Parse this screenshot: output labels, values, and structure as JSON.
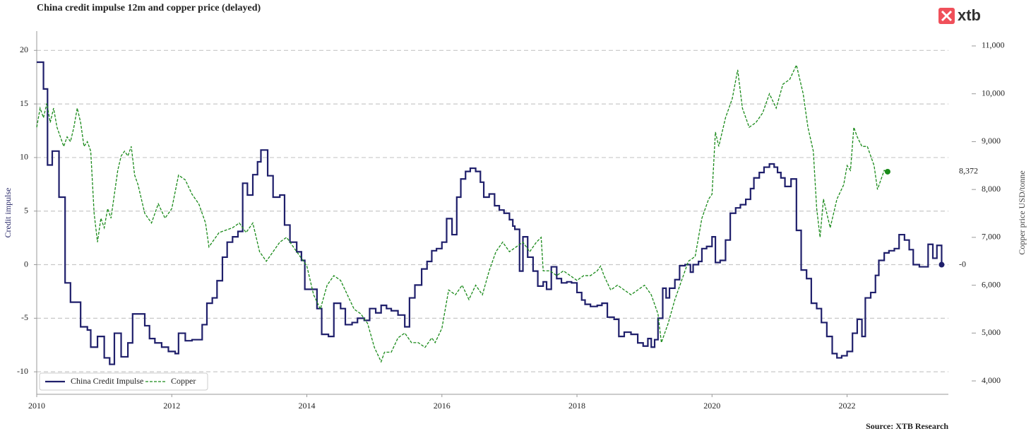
{
  "chart_data": {
    "type": "line",
    "title": "China credit impulse 12m and copper price (delayed)",
    "source": "Source: XTB Research",
    "logo": "xtb",
    "ylabel": "Credit impulse",
    "y2label": "Copper price USD/tonne",
    "xlim": [
      2010,
      2023.5
    ],
    "xticks": [
      2010,
      2012,
      2014,
      2016,
      2018,
      2020,
      2022
    ],
    "ylim": [
      -12.1,
      21.8
    ],
    "yticks": [
      -10,
      -5,
      0,
      5,
      10,
      15,
      20
    ],
    "y2lim": [
      3720,
      11310
    ],
    "y2ticks": [
      {
        "value": 4000,
        "label": "4,000"
      },
      {
        "value": 5000,
        "label": "5,000"
      },
      {
        "value": 6000,
        "label": "6,000"
      },
      {
        "value": 7000,
        "label": "7,000"
      },
      {
        "value": 8000,
        "label": "8,000"
      },
      {
        "value": 9000,
        "label": "9,000"
      },
      {
        "value": 10000,
        "label": "10,000"
      },
      {
        "value": 11000,
        "label": "11,000"
      }
    ],
    "grid": true,
    "legend": "lower left",
    "annotations": [
      {
        "text": "8,372",
        "value": 8372,
        "axis": "y2"
      },
      {
        "text": "-0",
        "value": 0,
        "axis": "y"
      }
    ],
    "series": [
      {
        "name": "China Credit Impulse",
        "color": "#1f1f6b",
        "axis": "y",
        "step": true,
        "linestyle": "solid",
        "x": [
          2010.0,
          2010.1,
          2010.16,
          2010.23,
          2010.33,
          2010.42,
          2010.5,
          2010.65,
          2010.75,
          2010.8,
          2010.9,
          2011.0,
          2011.08,
          2011.15,
          2011.25,
          2011.35,
          2011.42,
          2011.6,
          2011.67,
          2011.75,
          2011.85,
          2011.95,
          2012.05,
          2012.1,
          2012.2,
          2012.3,
          2012.45,
          2012.52,
          2012.6,
          2012.67,
          2012.75,
          2012.82,
          2012.9,
          2012.98,
          2013.05,
          2013.12,
          2013.2,
          2013.27,
          2013.32,
          2013.42,
          2013.5,
          2013.6,
          2013.67,
          2013.75,
          2013.85,
          2013.92,
          2013.97,
          2014.15,
          2014.22,
          2014.32,
          2014.4,
          2014.5,
          2014.57,
          2014.67,
          2014.75,
          2014.85,
          2014.93,
          2015.02,
          2015.1,
          2015.18,
          2015.25,
          2015.35,
          2015.45,
          2015.52,
          2015.6,
          2015.7,
          2015.78,
          2015.85,
          2015.92,
          2016.0,
          2016.07,
          2016.15,
          2016.22,
          2016.28,
          2016.35,
          2016.42,
          2016.5,
          2016.57,
          2016.62,
          2016.7,
          2016.78,
          2016.85,
          2016.92,
          2017.0,
          2017.05,
          2017.08,
          2017.15,
          2017.2,
          2017.27,
          2017.35,
          2017.42,
          2017.5,
          2017.55,
          2017.62,
          2017.7,
          2017.77,
          2017.85,
          2017.92,
          2018.0,
          2018.07,
          2018.12,
          2018.2,
          2018.3,
          2018.37,
          2018.45,
          2018.55,
          2018.62,
          2018.7,
          2018.8,
          2018.9,
          2018.98,
          2019.05,
          2019.1,
          2019.15,
          2019.2,
          2019.27,
          2019.32,
          2019.37,
          2019.45,
          2019.52,
          2019.6,
          2019.68,
          2019.72,
          2019.8,
          2019.85,
          2019.92,
          2020.0,
          2020.05,
          2020.12,
          2020.2,
          2020.27,
          2020.35,
          2020.42,
          2020.5,
          2020.57,
          2020.62,
          2020.7,
          2020.77,
          2020.85,
          2020.92,
          2020.97,
          2021.02,
          2021.08,
          2021.17,
          2021.25,
          2021.32,
          2021.4,
          2021.47,
          2021.55,
          2021.62,
          2021.7,
          2021.78,
          2021.85,
          2021.92,
          2022.0,
          2022.08,
          2022.15,
          2022.22,
          2022.27,
          2022.35,
          2022.42,
          2022.47,
          2022.55,
          2022.62,
          2022.7,
          2022.77,
          2022.85,
          2022.92,
          2022.98,
          2023.07,
          2023.2,
          2023.27,
          2023.33,
          2023.4
        ],
        "values": [
          18.9,
          16.4,
          9.3,
          10.6,
          6.3,
          -1.7,
          -3.5,
          -5.8,
          -6.1,
          -7.7,
          -6.7,
          -8.7,
          -9.3,
          -6.4,
          -8.6,
          -7.3,
          -4.6,
          -5.7,
          -6.9,
          -7.3,
          -7.7,
          -8.1,
          -8.3,
          -6.4,
          -7.1,
          -7.0,
          -5.6,
          -3.6,
          -3.1,
          -1.5,
          0.7,
          2.1,
          2.6,
          3.1,
          7.6,
          6.5,
          8.4,
          9.6,
          10.7,
          8.3,
          6.3,
          6.5,
          3.7,
          2.1,
          1.2,
          0.4,
          -2.3,
          -4.1,
          -6.5,
          -6.7,
          -3.6,
          -4.1,
          -5.6,
          -5.4,
          -5.0,
          -5.2,
          -4.1,
          -4.5,
          -3.8,
          -4.1,
          -4.3,
          -4.7,
          -5.8,
          -3.1,
          -1.9,
          -0.4,
          0.3,
          1.3,
          1.5,
          2.1,
          4.3,
          2.8,
          6.3,
          8.0,
          8.7,
          9.0,
          8.7,
          7.7,
          6.3,
          6.6,
          5.5,
          5.1,
          4.8,
          4.2,
          3.6,
          3.3,
          -0.6,
          2.6,
          0.7,
          -0.6,
          -2.0,
          -1.6,
          -2.3,
          -0.2,
          -1.3,
          -1.7,
          -1.6,
          -1.7,
          -2.6,
          -3.3,
          -3.7,
          -3.9,
          -3.8,
          -3.6,
          -4.9,
          -5.1,
          -6.7,
          -6.3,
          -6.5,
          -7.3,
          -7.6,
          -6.9,
          -7.7,
          -7.0,
          -5.0,
          -2.2,
          -3.1,
          -2.2,
          -1.4,
          -0.1,
          0.0,
          -0.7,
          0.0,
          0.3,
          1.5,
          1.7,
          2.6,
          0.2,
          0.4,
          2.3,
          4.8,
          5.3,
          5.6,
          6.1,
          7.1,
          8.1,
          8.6,
          9.1,
          9.4,
          9.1,
          8.6,
          8.1,
          7.3,
          8.0,
          3.2,
          -0.5,
          -1.3,
          -3.6,
          -4.1,
          -5.4,
          -6.7,
          -8.3,
          -8.7,
          -8.5,
          -8.1,
          -6.4,
          -5.1,
          -6.7,
          -3.1,
          -2.6,
          -1.0,
          0.4,
          1.1,
          1.3,
          1.5,
          2.8,
          2.3,
          1.4,
          0.0,
          -0.2,
          1.9,
          0.6,
          1.8,
          0.0
        ]
      },
      {
        "name": "Copper",
        "color": "#1a8a1a",
        "axis": "y2",
        "step": false,
        "linestyle": "dashed",
        "x": [
          2010.0,
          2010.05,
          2010.1,
          2010.15,
          2010.2,
          2010.25,
          2010.3,
          2010.35,
          2010.4,
          2010.45,
          2010.5,
          2010.55,
          2010.6,
          2010.65,
          2010.7,
          2010.75,
          2010.8,
          2010.85,
          2010.9,
          2010.95,
          2011.0,
          2011.05,
          2011.1,
          2011.15,
          2011.2,
          2011.25,
          2011.3,
          2011.35,
          2011.4,
          2011.45,
          2011.5,
          2011.55,
          2011.6,
          2011.7,
          2011.8,
          2011.9,
          2012.0,
          2012.1,
          2012.2,
          2012.3,
          2012.4,
          2012.5,
          2012.55,
          2012.7,
          2012.9,
          2013.0,
          2013.1,
          2013.2,
          2013.3,
          2013.4,
          2013.5,
          2013.6,
          2013.7,
          2013.8,
          2013.9,
          2014.0,
          2014.1,
          2014.2,
          2014.3,
          2014.4,
          2014.5,
          2014.6,
          2014.7,
          2014.8,
          2014.9,
          2015.0,
          2015.1,
          2015.15,
          2015.25,
          2015.35,
          2015.45,
          2015.55,
          2015.65,
          2015.75,
          2015.85,
          2015.9,
          2016.0,
          2016.1,
          2016.2,
          2016.3,
          2016.4,
          2016.5,
          2016.6,
          2016.7,
          2016.8,
          2016.9,
          2017.0,
          2017.1,
          2017.2,
          2017.3,
          2017.4,
          2017.47,
          2017.5,
          2017.6,
          2017.7,
          2017.8,
          2017.9,
          2018.0,
          2018.1,
          2018.2,
          2018.3,
          2018.35,
          2018.4,
          2018.5,
          2018.6,
          2018.7,
          2018.8,
          2018.9,
          2019.0,
          2019.1,
          2019.2,
          2019.25,
          2019.35,
          2019.45,
          2019.55,
          2019.65,
          2019.75,
          2019.85,
          2019.95,
          2020.0,
          2020.05,
          2020.1,
          2020.2,
          2020.3,
          2020.38,
          2020.45,
          2020.55,
          2020.65,
          2020.75,
          2020.85,
          2020.95,
          2021.05,
          2021.15,
          2021.25,
          2021.35,
          2021.42,
          2021.5,
          2021.55,
          2021.6,
          2021.65,
          2021.7,
          2021.75,
          2021.8,
          2021.85,
          2021.95,
          2022.0,
          2022.05,
          2022.1,
          2022.15,
          2022.22,
          2022.3,
          2022.35,
          2022.4,
          2022.45,
          2022.5,
          2022.55,
          2022.6
        ],
        "values": [
          9300,
          9700,
          9500,
          9800,
          9400,
          9700,
          9300,
          9100,
          8900,
          9100,
          9000,
          9300,
          9700,
          9400,
          8900,
          9000,
          8800,
          7500,
          6900,
          7400,
          7200,
          7600,
          7400,
          7900,
          8400,
          8700,
          8800,
          8700,
          8900,
          8300,
          8100,
          7800,
          7500,
          7300,
          7700,
          7400,
          7600,
          8300,
          8200,
          7900,
          7700,
          7300,
          6800,
          7100,
          7200,
          7300,
          7100,
          7300,
          6700,
          6500,
          6700,
          6900,
          7000,
          6800,
          6600,
          6400,
          5800,
          5500,
          6000,
          6200,
          6100,
          5800,
          5500,
          5400,
          5200,
          4700,
          4400,
          4600,
          4600,
          4900,
          5000,
          4800,
          4800,
          4700,
          4900,
          4800,
          5100,
          5900,
          5800,
          6000,
          5700,
          6000,
          5800,
          6300,
          6700,
          6900,
          6700,
          6800,
          6900,
          6700,
          6900,
          7000,
          6300,
          6300,
          6200,
          6300,
          6200,
          6100,
          6200,
          6200,
          6300,
          6400,
          6200,
          5900,
          6000,
          5900,
          5800,
          5900,
          6000,
          5800,
          5400,
          4800,
          5200,
          5700,
          6100,
          6500,
          6600,
          7400,
          7800,
          7900,
          9200,
          8900,
          9500,
          9900,
          10500,
          9700,
          9300,
          9400,
          9600,
          10000,
          9700,
          10200,
          10300,
          10600,
          10000,
          9300,
          8800,
          7600,
          7000,
          7800,
          7500,
          7200,
          7500,
          7800,
          8100,
          8500,
          8400,
          9300,
          9100,
          8900,
          8900,
          8700,
          8500,
          8000,
          8200,
          8400,
          8372
        ]
      }
    ]
  }
}
